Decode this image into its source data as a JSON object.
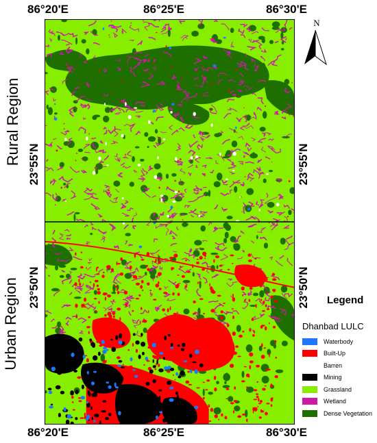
{
  "coords": {
    "top": [
      "86°20'E",
      "86°25'E",
      "86°30'E"
    ],
    "bottom": [
      "86°20'E",
      "86°25'E",
      "86°30'E"
    ],
    "left_upper": "23°55'N",
    "left_lower": "23°50'N",
    "right_upper": "23°55'N",
    "right_lower": "23°50'N"
  },
  "regions": {
    "rural": "Rural Region",
    "urban": "Urban Region"
  },
  "north": "N",
  "legend": {
    "title": "Legend",
    "subtitle": "Dhanbad LULC",
    "items": [
      {
        "label": "Waterbody",
        "color": "#1e78ff"
      },
      {
        "label": "Built-Up",
        "color": "#ff0000"
      },
      {
        "label": "Barren",
        "color": "#ffffff"
      },
      {
        "label": "Mining",
        "color": "#000000"
      },
      {
        "label": "Grassland",
        "color": "#88ee00"
      },
      {
        "label": "Wetland",
        "color": "#cc1aa8"
      },
      {
        "label": "Dense Vegetation",
        "color": "#1e6e00"
      }
    ]
  }
}
